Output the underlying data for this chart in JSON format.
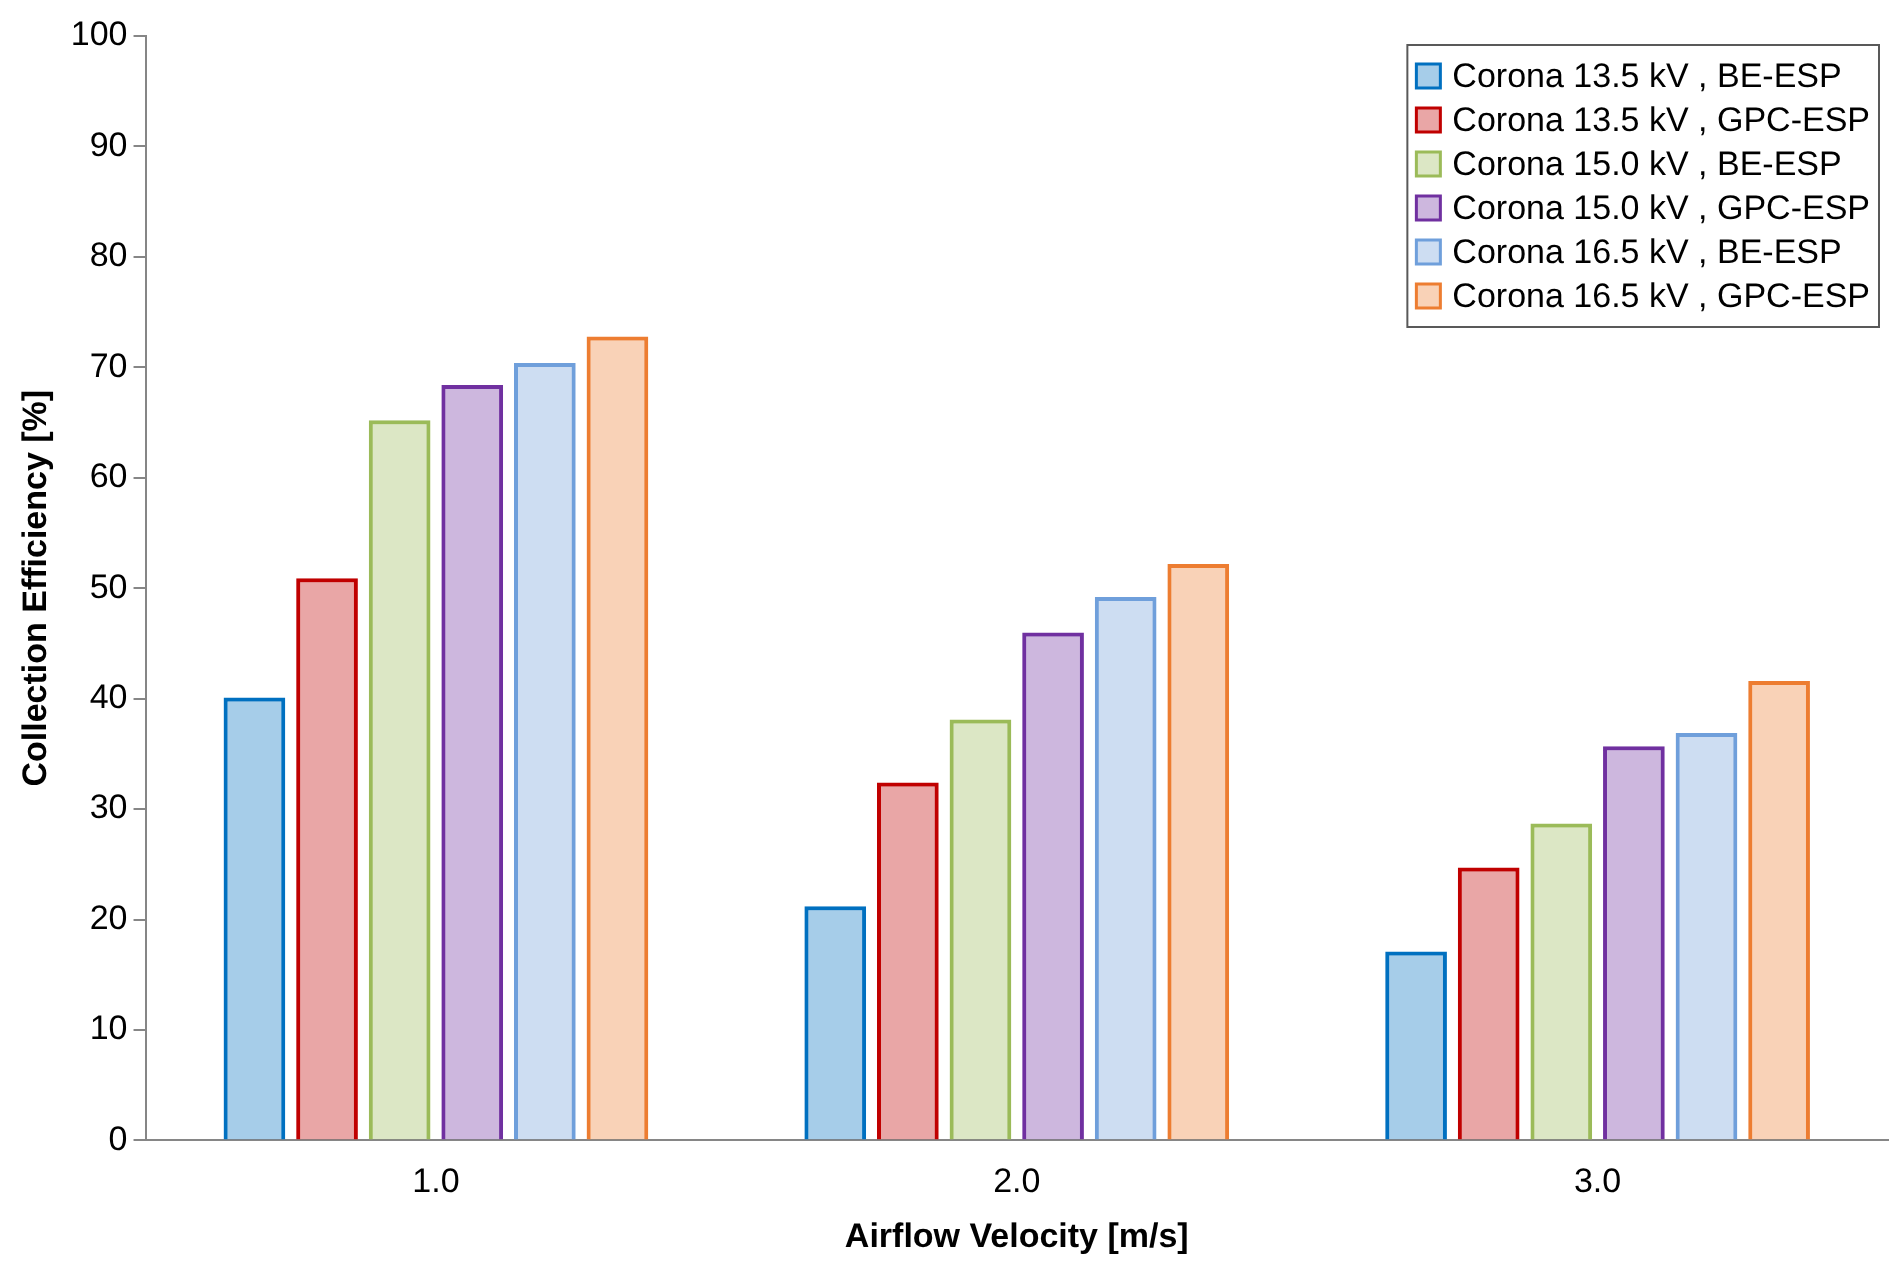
{
  "chart_data": {
    "type": "bar",
    "xlabel": "Airflow Velocity [m/s]",
    "ylabel": "Collection Efficiency [%]",
    "categories": [
      "1.0",
      "2.0",
      "3.0"
    ],
    "series": [
      {
        "name": "Corona 13.5 kV , BE-ESP",
        "color": "#0070c0",
        "values": [
          40.1,
          21.2,
          17.1
        ]
      },
      {
        "name": "Corona 13.5 kV , GPC-ESP",
        "color": "#c00000",
        "values": [
          50.9,
          32.4,
          24.7
        ]
      },
      {
        "name": "Corona 15.0 kV , BE-ESP",
        "color": "#9bbb59",
        "values": [
          65.2,
          38.1,
          28.7
        ]
      },
      {
        "name": "Corona 15.0 kV , GPC-ESP",
        "color": "#7030a0",
        "values": [
          68.4,
          46.0,
          35.7
        ]
      },
      {
        "name": "Corona 16.5 kV , BE-ESP",
        "color": "#6f9fdb",
        "values": [
          70.4,
          49.2,
          36.9
        ]
      },
      {
        "name": "Corona 16.5 kV , GPC-ESP",
        "color": "#ed7d31",
        "values": [
          72.8,
          52.2,
          41.6
        ]
      }
    ],
    "ylim": [
      0,
      100
    ],
    "yticks": [
      0,
      10,
      20,
      30,
      40,
      50,
      60,
      70,
      80,
      90,
      100
    ],
    "grid": false,
    "legend": "top right"
  }
}
